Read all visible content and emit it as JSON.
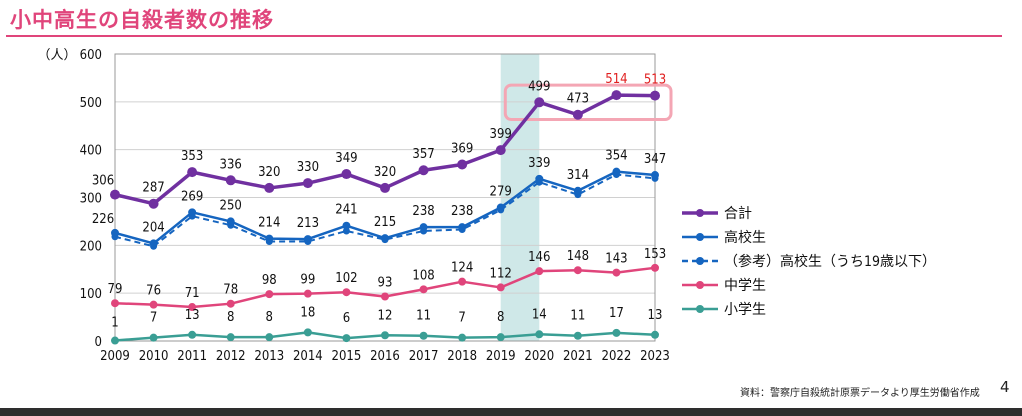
{
  "page": {
    "title": "小中高生の自殺者数の推移",
    "source": "資料：警察庁自殺統計原票データより厚生労働省作成",
    "page_number": "4"
  },
  "colors": {
    "title": "#e0457b",
    "total": "#7030a0",
    "high": "#1565c0",
    "middle": "#e0457b",
    "elementary": "#3a9e94",
    "highlight_band": "#cfe8e8",
    "highlight_box": "#f4a6b4",
    "emphasis_label": "#e02020"
  },
  "chart_data": {
    "type": "line",
    "title": "小中高生の自殺者数の推移",
    "ylabel": "（人）",
    "ylim": [
      0,
      600
    ],
    "yticks": [
      0,
      100,
      200,
      300,
      400,
      500,
      600
    ],
    "x": [
      "2009",
      "2010",
      "2011",
      "2012",
      "2013",
      "2014",
      "2015",
      "2016",
      "2017",
      "2018",
      "2019",
      "2020",
      "2021",
      "2022",
      "2023"
    ],
    "grid": "horizontal",
    "legend_position": "right",
    "shaded_period": "2019-2020",
    "highlighted_years": "2020-2023 (合計)",
    "series": [
      {
        "name": "合計",
        "key": "total",
        "style": "solid",
        "values": [
          306,
          287,
          353,
          336,
          320,
          330,
          349,
          320,
          357,
          369,
          399,
          499,
          473,
          514,
          513
        ],
        "labelled": true
      },
      {
        "name": "高校生",
        "key": "high",
        "style": "solid",
        "values": [
          226,
          204,
          269,
          250,
          214,
          213,
          241,
          215,
          238,
          238,
          279,
          339,
          314,
          354,
          347
        ],
        "labelled": true
      },
      {
        "name": "（参考）高校生（うち19歳以下）",
        "key": "high19",
        "style": "dashed",
        "values": [
          218,
          198,
          261,
          242,
          208,
          208,
          230,
          212,
          230,
          233,
          274,
          332,
          306,
          348,
          340
        ],
        "labelled": false
      },
      {
        "name": "中学生",
        "key": "middle",
        "style": "solid",
        "values": [
          79,
          76,
          71,
          78,
          98,
          99,
          102,
          93,
          108,
          124,
          112,
          146,
          148,
          143,
          153
        ],
        "labelled": true
      },
      {
        "name": "小学生",
        "key": "elementary",
        "style": "solid",
        "values": [
          1,
          7,
          13,
          8,
          8,
          18,
          6,
          12,
          11,
          7,
          8,
          14,
          11,
          17,
          13
        ],
        "labelled": true
      }
    ]
  }
}
